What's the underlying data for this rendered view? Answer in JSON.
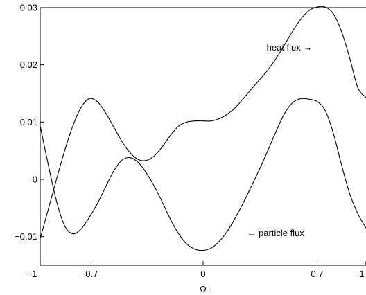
{
  "chart_data": {
    "type": "line",
    "title": "",
    "xlabel": "Ω",
    "ylabel": "",
    "xlim": [
      -1,
      1
    ],
    "ylim": [
      -0.015,
      0.03
    ],
    "grid": false,
    "x_ticks": [
      {
        "value": -1,
        "label": "−1"
      },
      {
        "value": -0.7,
        "label": "−0.7"
      },
      {
        "value": 0,
        "label": "0"
      },
      {
        "value": 0.7,
        "label": "0.7"
      },
      {
        "value": 1,
        "label": "1"
      }
    ],
    "y_ticks": [
      {
        "value": -0.01,
        "label": "−0.01"
      },
      {
        "value": 0,
        "label": "0"
      },
      {
        "value": 0.01,
        "label": "0.01"
      },
      {
        "value": 0.02,
        "label": "0.02"
      },
      {
        "value": 0.03,
        "label": "0.03"
      }
    ],
    "series": [
      {
        "id": "heat",
        "x": [
          -1,
          -0.95,
          -0.9,
          -0.85,
          -0.8,
          -0.75,
          -0.7,
          -0.65,
          -0.6,
          -0.55,
          -0.5,
          -0.45,
          -0.4,
          -0.35,
          -0.3,
          -0.25,
          -0.2,
          -0.15,
          -0.1,
          -0.05,
          0,
          0.05,
          0.1,
          0.15,
          0.2,
          0.25,
          0.3,
          0.35,
          0.4,
          0.45,
          0.5,
          0.55,
          0.6,
          0.65,
          0.7,
          0.75,
          0.8,
          0.85,
          0.9,
          0.95,
          1
        ],
        "values": [
          -0.0103,
          -0.0052,
          0.0,
          0.005,
          0.0093,
          0.0125,
          0.0141,
          0.0136,
          0.0117,
          0.0092,
          0.0067,
          0.0047,
          0.0035,
          0.0033,
          0.0041,
          0.0057,
          0.0077,
          0.0093,
          0.01,
          0.0102,
          0.0102,
          0.0102,
          0.0106,
          0.0114,
          0.0126,
          0.0142,
          0.0159,
          0.0175,
          0.0192,
          0.0212,
          0.0235,
          0.0259,
          0.028,
          0.0295,
          0.0301,
          0.0301,
          0.0289,
          0.0258,
          0.0212,
          0.016,
          0.0143
        ]
      },
      {
        "id": "particle",
        "x": [
          -1,
          -0.95,
          -0.9,
          -0.85,
          -0.8,
          -0.75,
          -0.7,
          -0.65,
          -0.6,
          -0.55,
          -0.5,
          -0.45,
          -0.4,
          -0.35,
          -0.3,
          -0.25,
          -0.2,
          -0.15,
          -0.1,
          -0.05,
          0,
          0.05,
          0.1,
          0.15,
          0.2,
          0.25,
          0.3,
          0.35,
          0.4,
          0.45,
          0.5,
          0.55,
          0.6,
          0.65,
          0.7,
          0.75,
          0.8,
          0.85,
          0.9,
          0.95,
          1
        ],
        "values": [
          0.0093,
          0.0025,
          -0.0038,
          -0.0081,
          -0.0095,
          -0.0087,
          -0.0067,
          -0.0043,
          -0.0014,
          0.0014,
          0.0033,
          0.0038,
          0.003,
          0.0012,
          -0.0012,
          -0.004,
          -0.007,
          -0.0095,
          -0.0113,
          -0.0122,
          -0.0124,
          -0.012,
          -0.0108,
          -0.009,
          -0.0066,
          -0.0039,
          -0.001,
          0.002,
          0.0052,
          0.0085,
          0.0115,
          0.0134,
          0.0141,
          0.014,
          0.0136,
          0.012,
          0.008,
          0.0025,
          -0.0025,
          -0.006,
          -0.0085
        ]
      }
    ],
    "annotations": [
      {
        "text": "heat flux →",
        "x": 0.39,
        "y": 0.0225
      },
      {
        "text": "← particle flux",
        "x": 0.27,
        "y": -0.0099
      }
    ]
  }
}
